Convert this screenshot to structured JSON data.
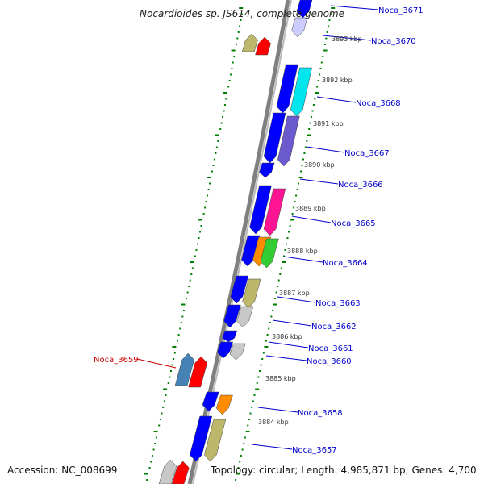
{
  "title": "Nocardioides sp. JS614, complete genome",
  "accession": "Accession: NC_008699",
  "topology": "Topology: circular; Length: 4,985,871 bp; Genes: 4,700",
  "colors": {
    "backbone": "#808080",
    "tick_outer": "#008000",
    "label_blue": "#0000cc",
    "label_red": "#cc0000",
    "tick_text": "#333333"
  },
  "kbp_ticks": [
    "3893 kbp",
    "3892 kbp",
    "3891 kbp",
    "3890 kbp",
    "3889 kbp",
    "3888 kbp",
    "3887 kbp",
    "3886 kbp",
    "3885 kbp",
    "3884 kbp"
  ],
  "gene_labels": [
    {
      "name": "Noca_3671",
      "strand": "plus"
    },
    {
      "name": "Noca_3670",
      "strand": "plus"
    },
    {
      "name": "Noca_3668",
      "strand": "plus"
    },
    {
      "name": "Noca_3667",
      "strand": "plus"
    },
    {
      "name": "Noca_3666",
      "strand": "plus"
    },
    {
      "name": "Noca_3665",
      "strand": "plus"
    },
    {
      "name": "Noca_3664",
      "strand": "plus"
    },
    {
      "name": "Noca_3663",
      "strand": "plus"
    },
    {
      "name": "Noca_3662",
      "strand": "plus"
    },
    {
      "name": "Noca_3661",
      "strand": "plus"
    },
    {
      "name": "Noca_3660",
      "strand": "plus"
    },
    {
      "name": "Noca_3659",
      "strand": "minus"
    },
    {
      "name": "Noca_3658",
      "strand": "plus"
    },
    {
      "name": "Noca_3657",
      "strand": "plus"
    }
  ]
}
